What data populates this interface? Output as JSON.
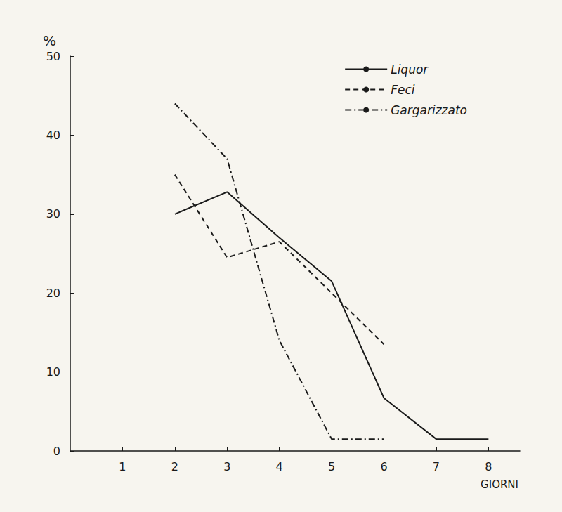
{
  "chart_data": {
    "type": "line",
    "x_label": "GIORNI",
    "y_label": "%",
    "series": [
      {
        "name": "Liquor",
        "color": "#1a1a1a",
        "line_style": "solid",
        "x": [
          2,
          3,
          4,
          5,
          6,
          7,
          8
        ],
        "values": [
          30,
          32.8,
          27,
          21.5,
          6.7,
          1.5,
          1.5
        ]
      },
      {
        "name": "Feci",
        "color": "#1a1a1a",
        "line_style": "dashed",
        "x": [
          2,
          3,
          4,
          5,
          6
        ],
        "values": [
          35,
          24.5,
          26.5,
          20,
          13.5
        ]
      },
      {
        "name": "Gargarizzato",
        "color": "#1a1a1a",
        "line_style": "dashdot",
        "x": [
          2,
          3,
          4,
          5,
          6
        ],
        "values": [
          44,
          37,
          14,
          1.5,
          1.5
        ]
      }
    ],
    "xlim": [
      0,
      8.6
    ],
    "xticks": [
      1,
      2,
      3,
      4,
      5,
      6,
      7,
      8
    ],
    "ylim": [
      0,
      50
    ],
    "yticks": [
      0,
      10,
      20,
      30,
      40,
      50
    ],
    "grid": false,
    "legend": "upper right"
  }
}
